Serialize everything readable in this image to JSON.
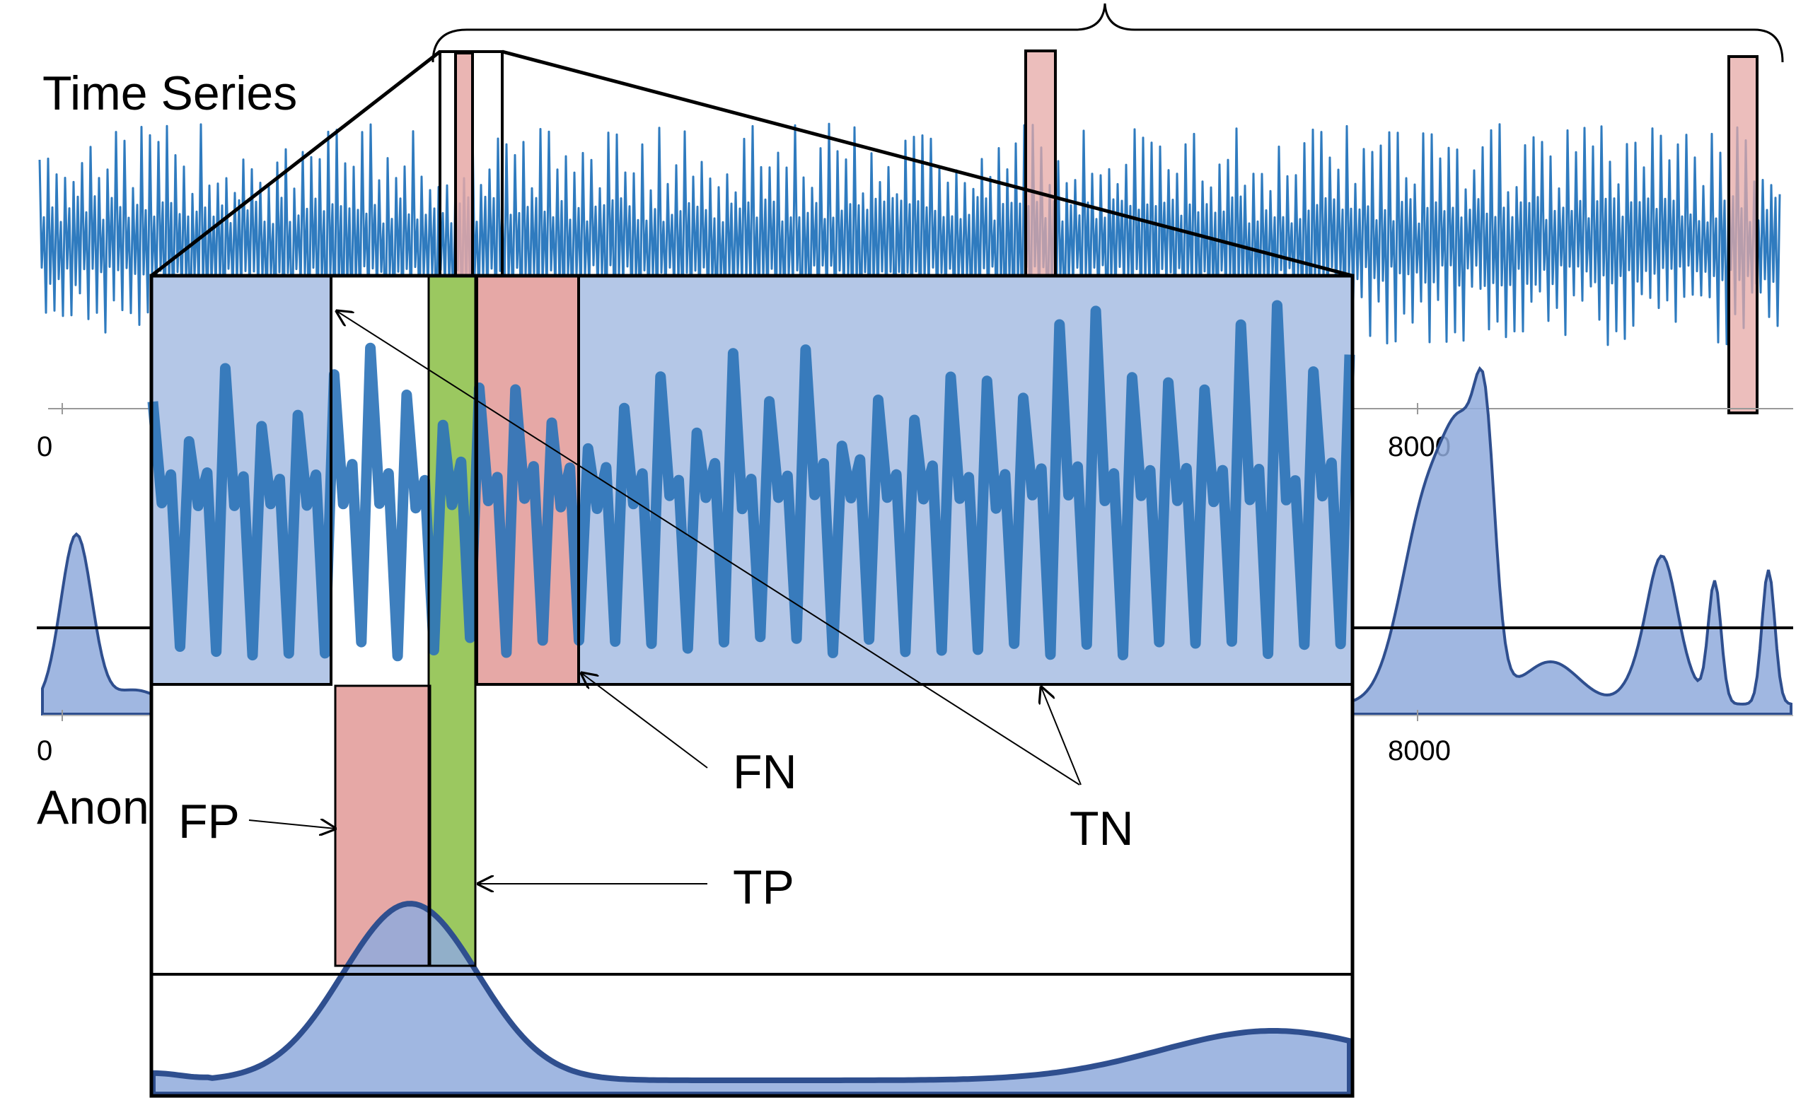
{
  "titles": {
    "time_series": "Time Series",
    "anomaly_partial": "Anon"
  },
  "axes": {
    "top": {
      "tick_labels": [
        "0",
        "8000"
      ]
    },
    "bottom": {
      "tick_labels": [
        "0",
        "8000"
      ]
    }
  },
  "callouts": {
    "fp": "FP",
    "fn": "FN",
    "tp": "TP",
    "tn": "TN"
  },
  "colors": {
    "series_line": "#2f7bbf",
    "zoom_series": "#2e74b8",
    "tn_fill": "#b4c7e7",
    "anomaly_fill": "#e6a8a6",
    "tp_fill": "#92c353",
    "score_fill": "#8faadc",
    "score_line": "#2f4f8f",
    "outline": "#000000"
  },
  "legend_semantics": {
    "pink": "anomaly region",
    "green": "true positive",
    "blue": "true negative"
  }
}
